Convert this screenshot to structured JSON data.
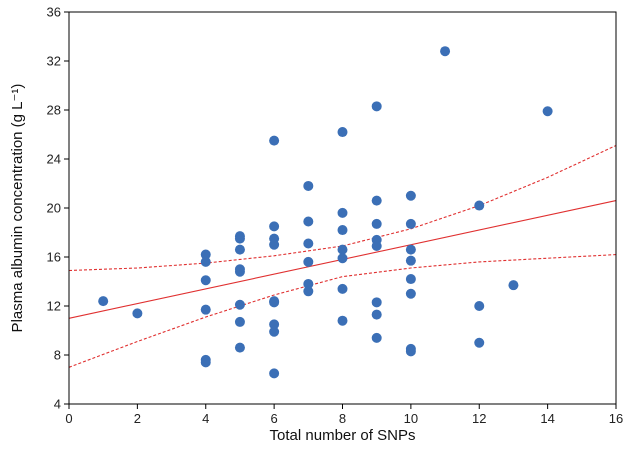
{
  "chart_data": {
    "type": "scatter",
    "title": "",
    "xlabel": "Total number of SNPs",
    "ylabel": "Plasma albumin concentration (g L⁻¹)",
    "xlim": [
      0,
      16
    ],
    "ylim": [
      4,
      36
    ],
    "xticks": [
      0,
      2,
      4,
      6,
      8,
      10,
      12,
      14,
      16
    ],
    "yticks": [
      4,
      8,
      12,
      16,
      20,
      24,
      28,
      32,
      36
    ],
    "grid": false,
    "colors": {
      "points": "#3b6fb6",
      "fit": "#e03030"
    },
    "points": [
      {
        "x": 1,
        "y": 12.4
      },
      {
        "x": 2,
        "y": 11.4
      },
      {
        "x": 4,
        "y": 16.2
      },
      {
        "x": 4,
        "y": 15.6
      },
      {
        "x": 4,
        "y": 14.1
      },
      {
        "x": 4,
        "y": 11.7
      },
      {
        "x": 4,
        "y": 7.6
      },
      {
        "x": 4,
        "y": 7.4
      },
      {
        "x": 5,
        "y": 17.7
      },
      {
        "x": 5,
        "y": 17.5
      },
      {
        "x": 5,
        "y": 16.6
      },
      {
        "x": 5,
        "y": 15.0
      },
      {
        "x": 5,
        "y": 14.8
      },
      {
        "x": 5,
        "y": 12.1
      },
      {
        "x": 5,
        "y": 10.7
      },
      {
        "x": 5,
        "y": 8.6
      },
      {
        "x": 6,
        "y": 25.5
      },
      {
        "x": 6,
        "y": 18.5
      },
      {
        "x": 6,
        "y": 17.5
      },
      {
        "x": 6,
        "y": 17.0
      },
      {
        "x": 6,
        "y": 12.4
      },
      {
        "x": 6,
        "y": 12.3
      },
      {
        "x": 6,
        "y": 10.5
      },
      {
        "x": 6,
        "y": 9.9
      },
      {
        "x": 6,
        "y": 6.5
      },
      {
        "x": 7,
        "y": 21.8
      },
      {
        "x": 7,
        "y": 18.9
      },
      {
        "x": 7,
        "y": 17.1
      },
      {
        "x": 7,
        "y": 15.6
      },
      {
        "x": 7,
        "y": 13.8
      },
      {
        "x": 7,
        "y": 13.2
      },
      {
        "x": 8,
        "y": 26.2
      },
      {
        "x": 8,
        "y": 19.6
      },
      {
        "x": 8,
        "y": 18.2
      },
      {
        "x": 8,
        "y": 16.6
      },
      {
        "x": 8,
        "y": 15.9
      },
      {
        "x": 8,
        "y": 13.4
      },
      {
        "x": 8,
        "y": 10.8
      },
      {
        "x": 9,
        "y": 28.3
      },
      {
        "x": 9,
        "y": 20.6
      },
      {
        "x": 9,
        "y": 18.7
      },
      {
        "x": 9,
        "y": 17.4
      },
      {
        "x": 9,
        "y": 16.9
      },
      {
        "x": 9,
        "y": 12.3
      },
      {
        "x": 9,
        "y": 11.3
      },
      {
        "x": 9,
        "y": 9.4
      },
      {
        "x": 10,
        "y": 21.0
      },
      {
        "x": 10,
        "y": 18.7
      },
      {
        "x": 10,
        "y": 16.6
      },
      {
        "x": 10,
        "y": 15.7
      },
      {
        "x": 10,
        "y": 14.2
      },
      {
        "x": 10,
        "y": 13.0
      },
      {
        "x": 10,
        "y": 8.5
      },
      {
        "x": 10,
        "y": 8.3
      },
      {
        "x": 11,
        "y": 32.8
      },
      {
        "x": 12,
        "y": 20.2
      },
      {
        "x": 12,
        "y": 12.0
      },
      {
        "x": 12,
        "y": 9.0
      },
      {
        "x": 13,
        "y": 13.7
      },
      {
        "x": 14,
        "y": 27.9
      }
    ],
    "fit_line": {
      "x": [
        0,
        16
      ],
      "y": [
        11.0,
        20.6
      ]
    },
    "ci_upper": {
      "x": [
        0,
        2,
        4,
        6,
        8,
        10,
        12,
        14,
        16
      ],
      "y": [
        14.9,
        15.1,
        15.5,
        16.1,
        16.9,
        18.3,
        20.2,
        22.5,
        25.1
      ]
    },
    "ci_lower": {
      "x": [
        0,
        2,
        4,
        6,
        8,
        10,
        12,
        14,
        16
      ],
      "y": [
        7.0,
        9.1,
        11.1,
        12.9,
        14.4,
        15.1,
        15.6,
        15.9,
        16.2
      ]
    }
  }
}
